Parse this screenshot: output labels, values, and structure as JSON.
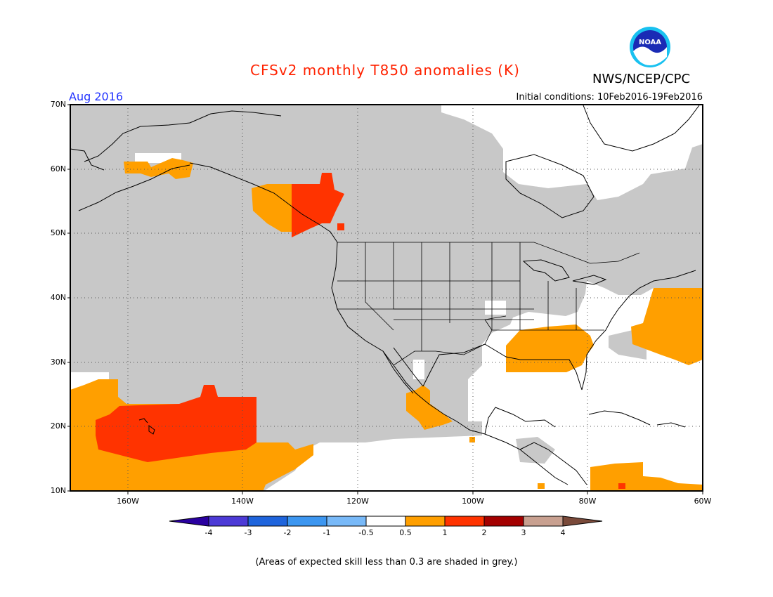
{
  "header": {
    "title": "CFSv2 monthly T850 anomalies (K)",
    "period": "Aug 2016",
    "initial_conditions": "Initial conditions: 10Feb2016-19Feb2016",
    "organization": "NWS/NCEP/CPC",
    "logo_text": "NOAA"
  },
  "colors": {
    "title": "#ff2200",
    "period": "#2233ff",
    "skill_grey": "#c8c8c8",
    "anom_0_5_1": "#ff9f00",
    "anom_1_2": "#ff3300",
    "coast": "#000000"
  },
  "map": {
    "lat_labels": [
      "70N",
      "60N",
      "50N",
      "40N",
      "30N",
      "20N",
      "10N"
    ],
    "lon_labels": [
      "160W",
      "140W",
      "120W",
      "100W",
      "80W",
      "60W"
    ],
    "lat_range": [
      10,
      70
    ],
    "lon_range": [
      -170,
      -60
    ]
  },
  "colorbar": {
    "labels": [
      "-4",
      "-3",
      "-2",
      "-1",
      "-0.5",
      "0.5",
      "1",
      "2",
      "3",
      "4"
    ],
    "bins": [
      {
        "color": "#2a00a0"
      },
      {
        "color": "#4c3ad6"
      },
      {
        "color": "#1e64dc"
      },
      {
        "color": "#3c96f0"
      },
      {
        "color": "#78b9f8"
      },
      {
        "color": "#ffffff"
      },
      {
        "color": "#ff9f00"
      },
      {
        "color": "#ff3300"
      },
      {
        "color": "#a30000"
      },
      {
        "color": "#c8a090"
      },
      {
        "color": "#7a4a3a"
      }
    ]
  },
  "footnote": "(Areas of expected skill less than 0.3 are shaded in grey.)"
}
